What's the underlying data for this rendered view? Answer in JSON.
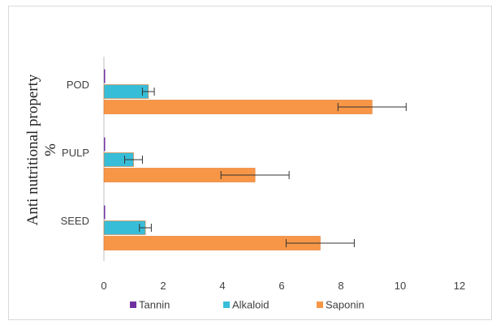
{
  "chart_data": {
    "type": "bar",
    "orientation": "horizontal",
    "categories": [
      "SEED",
      "PULP",
      "POD"
    ],
    "series": [
      {
        "name": "Tannin",
        "color": "#7030a0",
        "values": [
          0.02,
          0.03,
          0.04
        ],
        "errors": [
          0,
          0,
          0
        ]
      },
      {
        "name": "Alkaloid",
        "color": "#38bdd8",
        "values": [
          1.4,
          1.0,
          1.5
        ],
        "errors": [
          0.2,
          0.3,
          0.2
        ]
      },
      {
        "name": "Saponin",
        "color": "#f79646",
        "values": [
          7.3,
          5.1,
          9.05
        ],
        "errors": [
          1.15,
          1.15,
          1.15
        ]
      }
    ],
    "xlim": [
      0,
      12
    ],
    "xticks": [
      0,
      2,
      4,
      6,
      8,
      10,
      12
    ],
    "ylabel_line1": "Anti nutritional property",
    "ylabel_line2": "%",
    "xlabel": "",
    "legend_position": "bottom",
    "grid": false
  }
}
